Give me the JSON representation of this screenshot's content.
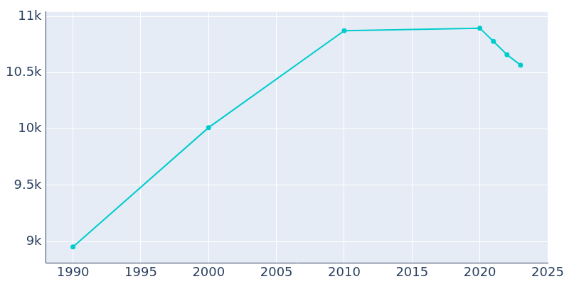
{
  "chart_data": {
    "type": "line",
    "x": [
      1990,
      2000,
      2010,
      2020,
      2021,
      2022,
      2023
    ],
    "values": [
      8953,
      10013,
      10873,
      10896,
      10779,
      10660,
      10568
    ],
    "color": "#00cccc",
    "marker": "circle",
    "xlim": [
      1988,
      2025
    ],
    "xticks": [
      1990,
      1995,
      2000,
      2005,
      2010,
      2015,
      2020,
      2025
    ],
    "ylim": [
      8810,
      11040
    ],
    "yticks": [
      {
        "value": 9000,
        "label": "9k"
      },
      {
        "value": 9500,
        "label": "9.5k"
      },
      {
        "value": 10000,
        "label": "10k"
      },
      {
        "value": 10500,
        "label": "10.5k"
      },
      {
        "value": 11000,
        "label": "11k"
      }
    ],
    "grid": true
  }
}
